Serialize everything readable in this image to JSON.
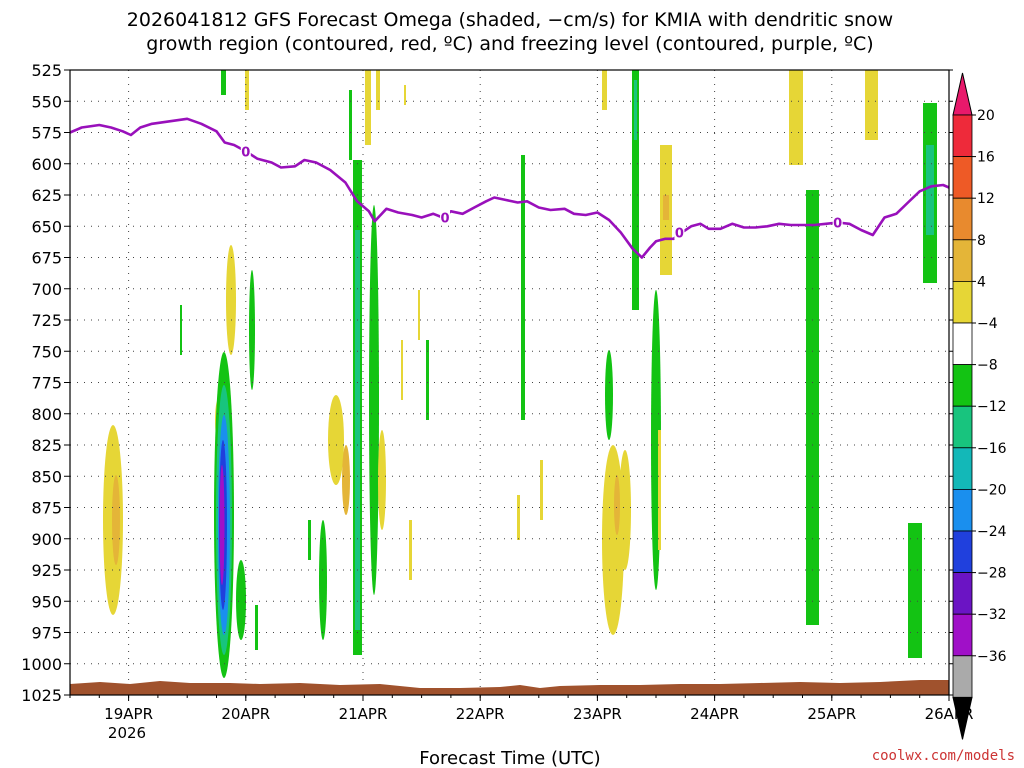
{
  "chart_data": {
    "type": "heatmap",
    "title_line1": "2026041812 GFS Forecast Omega (shaded, −cm/s) for KMIA with dendritic snow",
    "title_line2": "growth region (contoured, red, ºC) and freezing level (contoured, purple, ºC)",
    "xlabel": "Forecast Time (UTC)",
    "credit": "coolwx.com/models",
    "y_axis": {
      "ticks": [
        "525",
        "550",
        "575",
        "600",
        "625",
        "650",
        "675",
        "700",
        "725",
        "750",
        "775",
        "800",
        "825",
        "850",
        "875",
        "900",
        "925",
        "950",
        "975",
        "1000",
        "1025"
      ],
      "range": [
        525,
        1025
      ],
      "inverted": true
    },
    "x_axis": {
      "ticks": [
        "19APR",
        "20APR",
        "21APR",
        "22APR",
        "23APR",
        "24APR",
        "25APR",
        "26APR"
      ],
      "year_label": "2026",
      "range_days": [
        18.5,
        26.0
      ]
    },
    "colorbar": {
      "labels": [
        "20",
        "16",
        "12",
        "8",
        "4",
        "−4",
        "−8",
        "−12",
        "−16",
        "−20",
        "−24",
        "−28",
        "−32",
        "−36"
      ],
      "colors": [
        "#e8196b",
        "#ee2a3a",
        "#ee5a26",
        "#e88a2e",
        "#e4b538",
        "#e6d636",
        "#ffffff",
        "#13c313",
        "#18c47e",
        "#13b8b8",
        "#1a8fee",
        "#2040dd",
        "#6b14c4",
        "#a010c8",
        "#aaaaaa",
        "#000000"
      ]
    },
    "freezing_level": {
      "label": "0",
      "color": "#9910bb",
      "points": [
        [
          18.5,
          575
        ],
        [
          18.6,
          571
        ],
        [
          18.75,
          569
        ],
        [
          18.85,
          571
        ],
        [
          18.95,
          574
        ],
        [
          19.02,
          577
        ],
        [
          19.1,
          571
        ],
        [
          19.2,
          568
        ],
        [
          19.35,
          566
        ],
        [
          19.5,
          564
        ],
        [
          19.62,
          568
        ],
        [
          19.75,
          574
        ],
        [
          19.82,
          583
        ],
        [
          19.9,
          585
        ],
        [
          20.0,
          590
        ],
        [
          20.1,
          596
        ],
        [
          20.22,
          599
        ],
        [
          20.3,
          603
        ],
        [
          20.42,
          602
        ],
        [
          20.5,
          597
        ],
        [
          20.6,
          599
        ],
        [
          20.72,
          605
        ],
        [
          20.85,
          615
        ],
        [
          20.95,
          630
        ],
        [
          21.05,
          638
        ],
        [
          21.1,
          646
        ],
        [
          21.2,
          636
        ],
        [
          21.3,
          639
        ],
        [
          21.42,
          641
        ],
        [
          21.5,
          643
        ],
        [
          21.6,
          640
        ],
        [
          21.68,
          643
        ],
        [
          21.75,
          638
        ],
        [
          21.85,
          640
        ],
        [
          21.95,
          635
        ],
        [
          22.05,
          630
        ],
        [
          22.12,
          627
        ],
        [
          22.22,
          629
        ],
        [
          22.32,
          631
        ],
        [
          22.4,
          630
        ],
        [
          22.5,
          635
        ],
        [
          22.6,
          637
        ],
        [
          22.72,
          636
        ],
        [
          22.8,
          640
        ],
        [
          22.9,
          641
        ],
        [
          23.0,
          639
        ],
        [
          23.1,
          645
        ],
        [
          23.2,
          655
        ],
        [
          23.3,
          668
        ],
        [
          23.38,
          675
        ],
        [
          23.45,
          667
        ],
        [
          23.5,
          662
        ],
        [
          23.58,
          660
        ],
        [
          23.65,
          660
        ],
        [
          23.72,
          655
        ],
        [
          23.8,
          650
        ],
        [
          23.88,
          648
        ],
        [
          23.95,
          652
        ],
        [
          24.05,
          652
        ],
        [
          24.15,
          648
        ],
        [
          24.25,
          651
        ],
        [
          24.35,
          651
        ],
        [
          24.45,
          650
        ],
        [
          24.55,
          648
        ],
        [
          24.65,
          649
        ],
        [
          24.75,
          649
        ],
        [
          24.85,
          649
        ],
        [
          24.95,
          648
        ],
        [
          25.05,
          647
        ],
        [
          25.15,
          648
        ],
        [
          25.25,
          653
        ],
        [
          25.35,
          657
        ],
        [
          25.45,
          643
        ],
        [
          25.55,
          640
        ],
        [
          25.65,
          631
        ],
        [
          25.75,
          622
        ],
        [
          25.85,
          618
        ],
        [
          25.95,
          617
        ],
        [
          26.0,
          619
        ]
      ]
    }
  }
}
